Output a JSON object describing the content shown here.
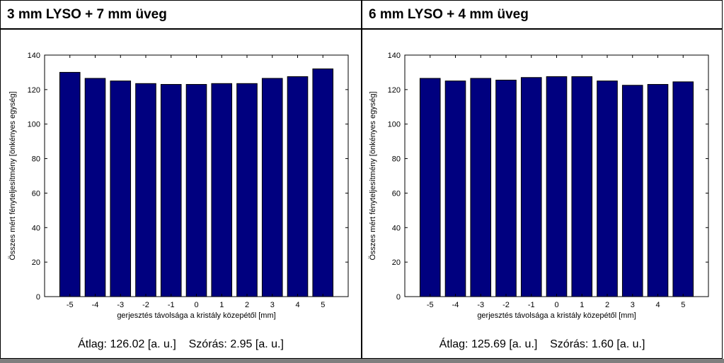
{
  "panels": [
    {
      "title": "3 mm LYSO + 7 mm üveg",
      "stats": {
        "mean": "Átlag: 126.02 [a. u.]",
        "std": "Szórás: 2.95 [a. u.]"
      }
    },
    {
      "title": "6 mm LYSO + 4 mm üveg",
      "stats": {
        "mean": "Átlag: 125.69 [a. u.]",
        "std": "Szórás: 1.60 [a. u.]"
      }
    }
  ],
  "chart_data": [
    {
      "type": "bar",
      "categories": [
        "-5",
        "-4",
        "-3",
        "-2",
        "-1",
        "0",
        "1",
        "2",
        "3",
        "4",
        "5"
      ],
      "values": [
        130,
        126.5,
        125,
        123.5,
        123,
        123,
        123.5,
        123.5,
        126.5,
        127.5,
        132
      ],
      "xlabel": "gerjesztés távolsága a kristály közepétől [mm]",
      "ylabel": "Összes mért fényteljesítmény [önkényes egység]",
      "ylim": [
        0,
        140
      ],
      "yticks": [
        "0",
        "20",
        "40",
        "60",
        "80",
        "100",
        "120",
        "140"
      ],
      "bar_color": "#00007f",
      "grid": false
    },
    {
      "type": "bar",
      "categories": [
        "-5",
        "-4",
        "-3",
        "-2",
        "-1",
        "0",
        "1",
        "2",
        "3",
        "4",
        "5"
      ],
      "values": [
        126.5,
        125,
        126.5,
        125.5,
        127,
        127.5,
        127.5,
        125,
        122.5,
        123,
        124.5
      ],
      "xlabel": "gerjesztés távolsága a kristály közepétől [mm]",
      "ylabel": "Összes mért fényteljesítmény [önkényes egység]",
      "ylim": [
        0,
        140
      ],
      "yticks": [
        "0",
        "20",
        "40",
        "60",
        "80",
        "100",
        "120",
        "140"
      ],
      "bar_color": "#00007f",
      "grid": false
    }
  ]
}
